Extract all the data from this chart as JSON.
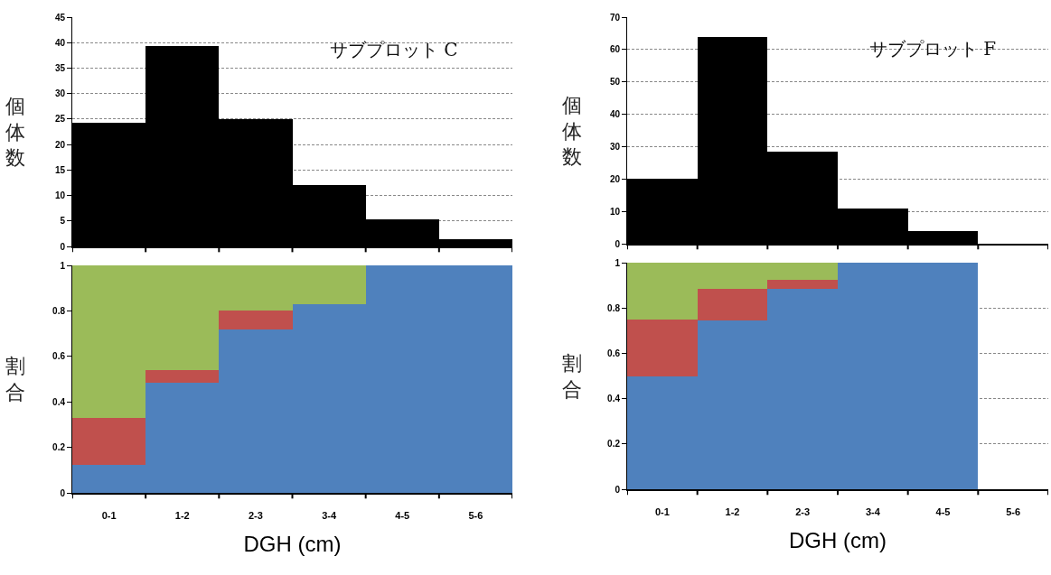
{
  "chart_data": [
    {
      "type": "bar",
      "categories": [
        null,
        null,
        null,
        null,
        null,
        null
      ],
      "values": [
        24.3,
        39.3,
        25,
        12,
        5.3,
        1.4
      ],
      "color": "#000000",
      "ylim": [
        0,
        45
      ],
      "yticks": [
        0,
        5,
        10,
        15,
        20,
        25,
        30,
        35,
        40,
        45
      ],
      "grid": "y",
      "tick_labels": "y",
      "ylabel": "個体数",
      "annotations": [
        "サブプロット C"
      ]
    },
    {
      "type": "bar",
      "stacked": true,
      "categories": [
        "0-1",
        "1-2",
        "2-3",
        "3-4",
        "4-5",
        "5-6"
      ],
      "series": [
        {
          "color": "#4f81bd",
          "values": [
            0.125,
            0.485,
            0.72,
            0.83,
            1,
            1
          ]
        },
        {
          "color": "#c0504d",
          "values": [
            0.205,
            0.055,
            0.08,
            0,
            0,
            0
          ]
        },
        {
          "color": "#9bbb59",
          "values": [
            0.67,
            0.46,
            0.2,
            0.17,
            0,
            0
          ]
        }
      ],
      "ylim": [
        0,
        1
      ],
      "yticks": [
        0,
        0.2,
        0.4,
        0.6,
        0.8,
        1
      ],
      "grid": "y",
      "ylabel": "割合",
      "xlabel": "DGH (cm)"
    },
    {
      "type": "bar",
      "categories": [
        null,
        null,
        null,
        null,
        null,
        null
      ],
      "values": [
        20,
        64,
        28.5,
        11,
        4,
        0
      ],
      "color": "#000000",
      "ylim": [
        0,
        70
      ],
      "yticks": [
        0,
        10,
        20,
        30,
        40,
        50,
        60,
        70
      ],
      "grid": "y",
      "tick_labels": "y",
      "ylabel": "個体数",
      "annotations": [
        "サブプロット F"
      ]
    },
    {
      "type": "bar",
      "stacked": true,
      "categories": [
        "0-1",
        "1-2",
        "2-3",
        "3-4",
        "4-5",
        "5-6"
      ],
      "series": [
        {
          "color": "#4f81bd",
          "values": [
            0.5,
            0.745,
            0.885,
            1,
            1,
            null
          ]
        },
        {
          "color": "#c0504d",
          "values": [
            0.25,
            0.14,
            0.04,
            0,
            0,
            null
          ]
        },
        {
          "color": "#9bbb59",
          "values": [
            0.25,
            0.115,
            0.075,
            0,
            0,
            null
          ]
        }
      ],
      "ylim": [
        0,
        1
      ],
      "yticks": [
        0,
        0.2,
        0.4,
        0.6,
        0.8,
        1
      ],
      "grid": "y",
      "ylabel": "割合",
      "xlabel": "DGH (cm)"
    }
  ]
}
